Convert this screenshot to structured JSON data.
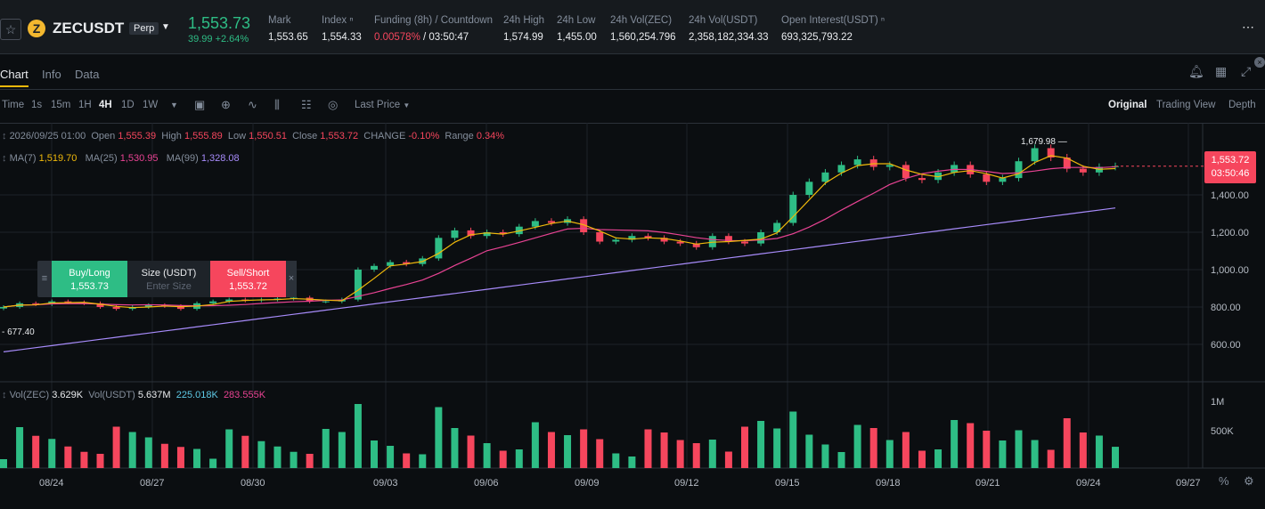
{
  "symbol": {
    "name": "ZECUSDT",
    "badge": "Perp",
    "coin_glyph": "Z",
    "star_icon": "star-icon"
  },
  "ticker": {
    "last_price": "1,553.73",
    "change": "39.99 +2.64%",
    "stats": [
      {
        "label": "Mark",
        "value": "1,553.65"
      },
      {
        "label": "Index ⁿ",
        "value": "1,554.33"
      },
      {
        "label": "Funding (8h) / Countdown",
        "value_rate": "0.00578%",
        "value_countdown": " / 03:50:47"
      },
      {
        "label": "24h High",
        "value": "1,574.99"
      },
      {
        "label": "24h Low",
        "value": "1,455.00"
      },
      {
        "label": "24h Vol(ZEC)",
        "value": "1,560,254.796"
      },
      {
        "label": "24h Vol(USDT)",
        "value": "2,358,182,334.33"
      },
      {
        "label": "Open Interest(USDT) ⁿ",
        "value": "693,325,793.22"
      }
    ]
  },
  "tabs": [
    "Chart",
    "Info",
    "Data"
  ],
  "toolbar": {
    "intervals": [
      "Time",
      "1s",
      "15m",
      "1H",
      "4H",
      "1D",
      "1W"
    ],
    "active_interval": "4H",
    "price_source": "Last Price",
    "views": [
      "Original",
      "Trading View",
      "Depth"
    ],
    "active_view": "Original"
  },
  "ohlc": {
    "date": "2026/09/25 01:00",
    "open_label": "Open",
    "open": "1,555.39",
    "high_label": "High",
    "high": "1,555.89",
    "low_label": "Low",
    "low": "1,550.51",
    "close_label": "Close",
    "close": "1,553.72",
    "change_label": "CHANGE",
    "change": "-0.10%",
    "range_label": "Range",
    "range": "0.34%"
  },
  "ma": {
    "ma7_label": "MA(7)",
    "ma7": "1,519.70",
    "ma25_label": "MA(25)",
    "ma25": "1,530.95",
    "ma99_label": "MA(99)",
    "ma99": "1,328.08"
  },
  "volume_legend": {
    "vol_coin_label": "Vol(ZEC)",
    "vol_coin": "3.629K",
    "vol_quote_label": "Vol(USDT)",
    "vol_quote": "5.637M",
    "ma1": "225.018K",
    "ma2": "283.555K"
  },
  "order": {
    "buy_label": "Buy/Long",
    "buy_price": "1,553.73",
    "size_label": "Size (USDT)",
    "size_placeholder": "Enter Size",
    "sell_label": "Sell/Short",
    "sell_price": "1,553.72"
  },
  "price_tag": {
    "price": "1,553.72",
    "countdown": "03:50:46"
  },
  "chart_data": {
    "type": "candlestick",
    "interval": "4H",
    "x_labels": [
      "08/24",
      "08/27",
      "08/30",
      "09/03",
      "09/06",
      "09/09",
      "09/12",
      "09/15",
      "09/18",
      "09/21",
      "09/24",
      "09/27"
    ],
    "y_ticks": [
      "600.00",
      "800.00",
      "1,000.00",
      "1,200.00",
      "1,400.00"
    ],
    "vol_ticks": [
      "1M",
      "500K"
    ],
    "annotations": {
      "high_marker": "1,679.98",
      "low_marker": "677.40"
    },
    "close_series": [
      800,
      820,
      815,
      830,
      825,
      820,
      800,
      790,
      800,
      810,
      805,
      790,
      820,
      830,
      840,
      835,
      840,
      845,
      850,
      830,
      830,
      840,
      1000,
      1020,
      1040,
      1030,
      1060,
      1170,
      1210,
      1180,
      1200,
      1190,
      1230,
      1260,
      1250,
      1270,
      1200,
      1150,
      1160,
      1180,
      1170,
      1150,
      1140,
      1120,
      1180,
      1150,
      1140,
      1200,
      1250,
      1400,
      1470,
      1520,
      1560,
      1590,
      1550,
      1560,
      1490,
      1480,
      1520,
      1560,
      1510,
      1470,
      1490,
      1580,
      1650,
      1600,
      1540,
      1520,
      1550,
      1553.72
    ],
    "colors": {
      "up": "#2ebd85",
      "down": "#f6465d",
      "ma7": "#f0b90b",
      "ma25": "#e84393",
      "ma99": "#a78bfa",
      "bg": "#0b0e11"
    }
  }
}
